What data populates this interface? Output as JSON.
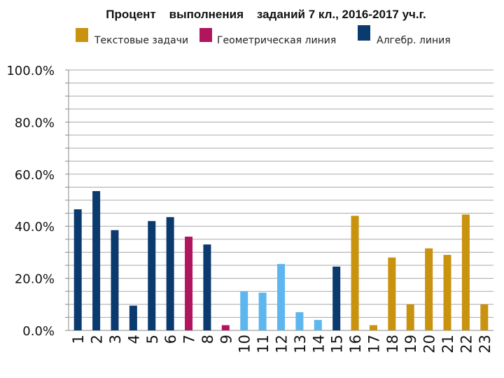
{
  "chart_data": {
    "type": "bar",
    "title": "Процент    выполнения    заданий 7 кл., 2016-2017 уч.г.",
    "legend_placement": "top",
    "grid": true,
    "ylim": [
      0,
      100
    ],
    "y_ticks": [
      "0.0%",
      "20.0%",
      "40.0%",
      "60.0%",
      "80.0%",
      "100.0%"
    ],
    "colors": {
      "text_tasks": "#c9920f",
      "geometry": "#b0155e",
      "algebra": "#0b3a6e",
      "unlabeled": "#5eb6ef"
    },
    "legend": [
      {
        "key": "text_tasks",
        "label": "Текстовые задачи"
      },
      {
        "key": "geometry",
        "label": "Геометрическая линия"
      },
      {
        "key": "algebra",
        "label": "Алгебр. линия"
      }
    ],
    "categories": [
      "1",
      "2",
      "3",
      "4",
      "5",
      "6",
      "7",
      "8",
      "9",
      "10",
      "11",
      "12",
      "13",
      "14",
      "15",
      "16",
      "17",
      "18",
      "19",
      "20",
      "21",
      "22",
      "23"
    ],
    "values": [
      46.5,
      53.5,
      38.5,
      9.5,
      42,
      43.5,
      36,
      33,
      2,
      15,
      14.5,
      25.5,
      7,
      4,
      24.5,
      44,
      2,
      28,
      10,
      31.5,
      29,
      44.5,
      10
    ],
    "groups": [
      "algebra",
      "algebra",
      "algebra",
      "algebra",
      "algebra",
      "algebra",
      "geometry",
      "algebra",
      "geometry",
      "unlabeled",
      "unlabeled",
      "unlabeled",
      "unlabeled",
      "unlabeled",
      "algebra",
      "text_tasks",
      "text_tasks",
      "text_tasks",
      "text_tasks",
      "text_tasks",
      "text_tasks",
      "text_tasks",
      "text_tasks"
    ]
  }
}
